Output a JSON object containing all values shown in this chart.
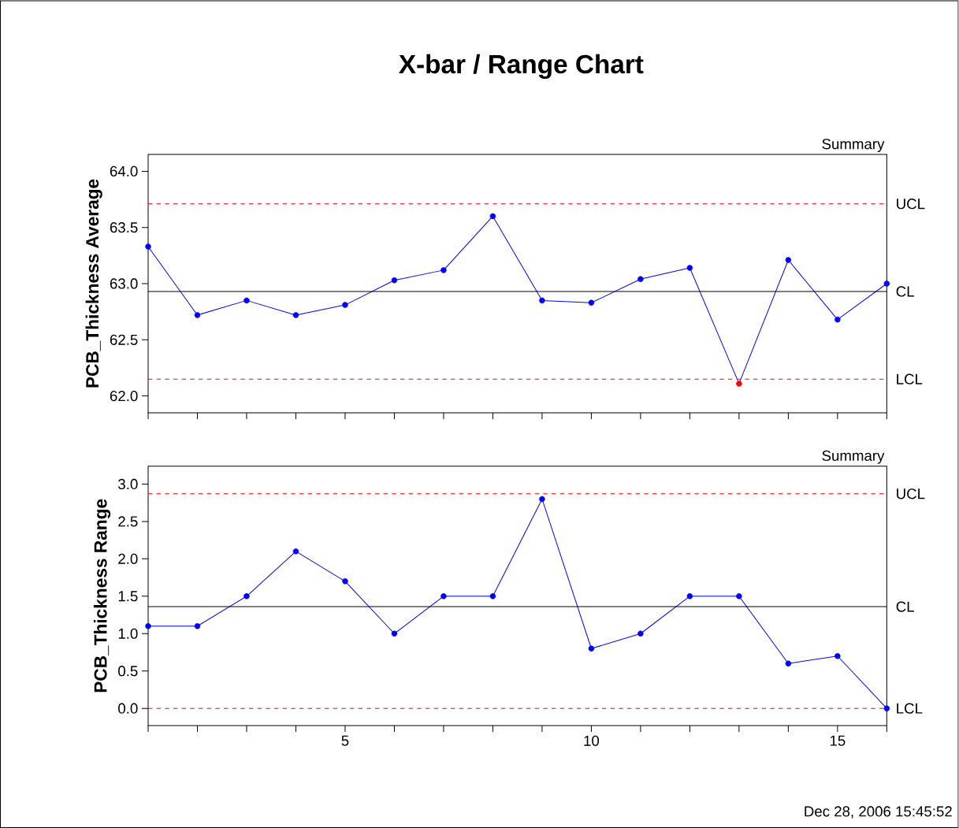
{
  "chart_data": [
    {
      "type": "line",
      "title": "X-bar / Range Chart",
      "ylabel": "PCB_Thickness Average",
      "annotations": [
        "Summary"
      ],
      "x": [
        1,
        2,
        3,
        4,
        5,
        6,
        7,
        8,
        9,
        10,
        11,
        12,
        13,
        14,
        15,
        16
      ],
      "series": [
        {
          "color": "#0000ff",
          "colors": [
            "#0000ff",
            "#0000ff",
            "#0000ff",
            "#0000ff",
            "#0000ff",
            "#0000ff",
            "#0000ff",
            "#0000ff",
            "#0000ff",
            "#0000ff",
            "#0000ff",
            "#0000ff",
            "#ff0000",
            "#0000ff",
            "#0000ff",
            "#0000ff"
          ],
          "values": [
            63.33,
            62.72,
            62.85,
            62.72,
            62.81,
            63.03,
            63.12,
            63.6,
            62.85,
            62.83,
            63.04,
            63.14,
            62.11,
            63.21,
            62.68,
            63.0
          ]
        }
      ],
      "ref_lines": [
        {
          "axis": "y",
          "value": 63.71,
          "label": "UCL",
          "color": "#ff0000",
          "line_style": "dashed"
        },
        {
          "axis": "y",
          "value": 62.93,
          "label": "CL",
          "color": "#000000",
          "line_style": "solid"
        },
        {
          "axis": "y",
          "value": 62.15,
          "label": "LCL",
          "color": "#ff0000",
          "line_style": "dashed"
        }
      ],
      "xlim": [
        1,
        16
      ],
      "xticks": [
        {
          "value": 1,
          "label": null
        },
        {
          "value": 2,
          "label": null
        },
        {
          "value": 3,
          "label": null
        },
        {
          "value": 4,
          "label": null
        },
        {
          "value": 5,
          "label": null
        },
        {
          "value": 6,
          "label": null
        },
        {
          "value": 7,
          "label": null
        },
        {
          "value": 8,
          "label": null
        },
        {
          "value": 9,
          "label": null
        },
        {
          "value": 10,
          "label": null
        },
        {
          "value": 11,
          "label": null
        },
        {
          "value": 12,
          "label": null
        },
        {
          "value": 13,
          "label": null
        },
        {
          "value": 14,
          "label": null
        },
        {
          "value": 15,
          "label": null
        },
        {
          "value": 16,
          "label": null
        }
      ],
      "ylim": [
        61.85,
        64.15
      ],
      "yticks": [
        {
          "value": 62,
          "label": "62.0"
        },
        {
          "value": 62.5,
          "label": "62.5"
        },
        {
          "value": 63,
          "label": "63.0"
        },
        {
          "value": 63.5,
          "label": "63.5"
        },
        {
          "value": 64,
          "label": "64.0"
        }
      ],
      "tick_labels": "y",
      "grid": false,
      "marker": "circle",
      "line_style": "solid"
    },
    {
      "type": "line",
      "ylabel": "PCB_Thickness Range",
      "annotations": [
        "Summary",
        "Dec 28, 2006 15:45:52"
      ],
      "x": [
        1,
        2,
        3,
        4,
        5,
        6,
        7,
        8,
        9,
        10,
        11,
        12,
        13,
        14,
        15,
        16
      ],
      "series": [
        {
          "color": "#0000ff",
          "colors": [
            "#0000ff",
            "#0000ff",
            "#0000ff",
            "#0000ff",
            "#0000ff",
            "#0000ff",
            "#0000ff",
            "#0000ff",
            "#0000ff",
            "#0000ff",
            "#0000ff",
            "#0000ff",
            "#0000ff",
            "#0000ff",
            "#0000ff",
            "#0000ff"
          ],
          "values": [
            1.1,
            1.1,
            1.5,
            2.1,
            1.7,
            1.0,
            1.5,
            1.5,
            2.8,
            0.8,
            1.0,
            1.5,
            1.5,
            0.6,
            0.7,
            0.0
          ]
        }
      ],
      "ref_lines": [
        {
          "axis": "y",
          "value": 2.87,
          "label": "UCL",
          "color": "#ff0000",
          "line_style": "dashed"
        },
        {
          "axis": "y",
          "value": 1.36,
          "label": "CL",
          "color": "#000000",
          "line_style": "solid"
        },
        {
          "axis": "y",
          "value": 0.0,
          "label": "LCL",
          "color": "#ff0000",
          "line_style": "dashed"
        }
      ],
      "xlim": [
        1,
        16
      ],
      "xticks": [
        {
          "value": 1,
          "label": null
        },
        {
          "value": 2,
          "label": null
        },
        {
          "value": 3,
          "label": null
        },
        {
          "value": 4,
          "label": null
        },
        5,
        {
          "value": 6,
          "label": null
        },
        {
          "value": 7,
          "label": null
        },
        {
          "value": 8,
          "label": null
        },
        {
          "value": 9,
          "label": null
        },
        10,
        {
          "value": 11,
          "label": null
        },
        {
          "value": 12,
          "label": null
        },
        {
          "value": 13,
          "label": null
        },
        {
          "value": 14,
          "label": null
        },
        15,
        {
          "value": 16,
          "label": null
        }
      ],
      "ylim": [
        -0.23,
        3.24
      ],
      "yticks": [
        {
          "value": 0,
          "label": "0.0"
        },
        {
          "value": 0.5,
          "label": "0.5"
        },
        {
          "value": 1,
          "label": "1.0"
        },
        {
          "value": 1.5,
          "label": "1.5"
        },
        {
          "value": 2,
          "label": "2.0"
        },
        {
          "value": 2.5,
          "label": "2.5"
        },
        {
          "value": 3,
          "label": "3.0"
        }
      ],
      "grid": false,
      "marker": "circle",
      "line_style": "solid"
    }
  ]
}
